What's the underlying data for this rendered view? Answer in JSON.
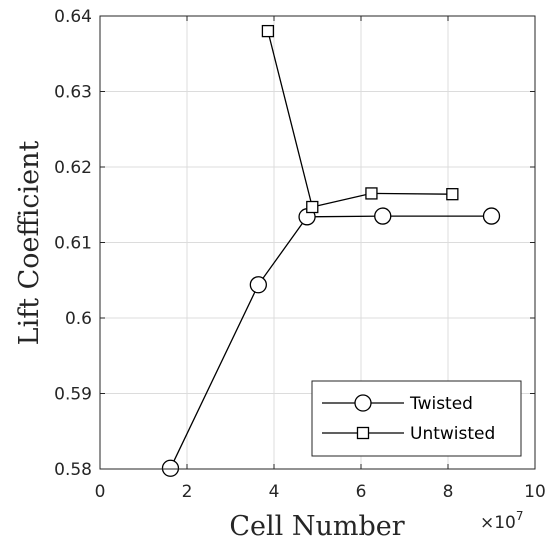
{
  "chart_data": {
    "type": "line",
    "xlabel": "Cell Number",
    "ylabel": "Lift Coefficient",
    "x_multiplier": "×10",
    "x_multiplier_exp": "7",
    "xlim": [
      0,
      10
    ],
    "ylim": [
      0.58,
      0.64
    ],
    "xticks": [
      0,
      2,
      4,
      6,
      8,
      10
    ],
    "yticks": [
      0.58,
      0.59,
      0.6,
      0.61,
      0.62,
      0.63,
      0.64
    ],
    "xtick_labels": [
      "0",
      "2",
      "4",
      "6",
      "8",
      "10"
    ],
    "ytick_labels": [
      "0.58",
      "0.59",
      "0.6",
      "0.61",
      "0.62",
      "0.63",
      "0.64"
    ],
    "grid": true,
    "legend_position": "bottom-right",
    "series": [
      {
        "name": "Twisted",
        "marker": "circle",
        "color": "#000000",
        "x": [
          1.62,
          3.64,
          4.76,
          6.5,
          9.0
        ],
        "y": [
          0.5801,
          0.6044,
          0.6134,
          0.6135,
          0.6135
        ]
      },
      {
        "name": "Untwisted",
        "marker": "square",
        "color": "#000000",
        "x": [
          3.86,
          4.88,
          6.24,
          8.1
        ],
        "y": [
          0.638,
          0.6147,
          0.6165,
          0.6164
        ]
      }
    ]
  }
}
